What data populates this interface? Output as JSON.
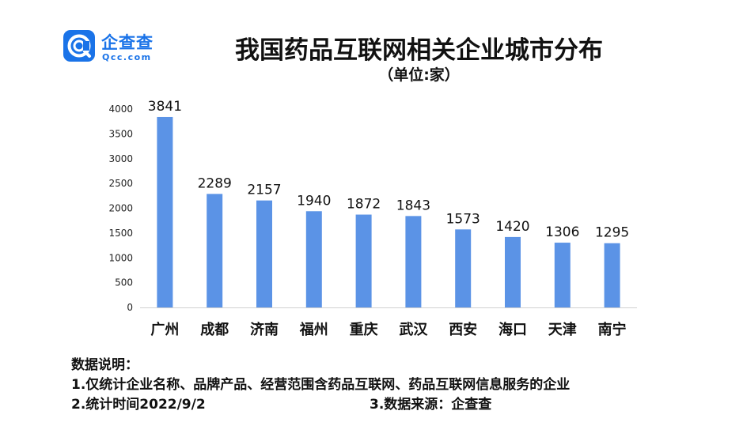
{
  "logo": {
    "name": "企查查",
    "domain": "Qcc.com",
    "color": "#1a73e8"
  },
  "chart_data": {
    "type": "bar",
    "title": "我国药品互联网相关企业城市分布",
    "subtitle": "（单位:家）",
    "categories": [
      "广州",
      "成都",
      "济南",
      "福州",
      "重庆",
      "武汉",
      "西安",
      "海口",
      "天津",
      "南宁"
    ],
    "values": [
      3841,
      2289,
      2157,
      1940,
      1872,
      1843,
      1573,
      1420,
      1306,
      1295
    ],
    "ylim": [
      0,
      4000
    ],
    "yticks": [
      "0",
      "500",
      "1000",
      "1500",
      "2000",
      "2500",
      "3000",
      "3500",
      "4000"
    ],
    "grid": false,
    "bar_color": "#5b93e6"
  },
  "notes": {
    "heading": "数据说明：",
    "item1": "1.仅统计企业名称、品牌产品、经营范围含药品互联网、药品互联网信息服务的企业",
    "item2": "2.统计时间2022/9/2",
    "item3": "3.数据来源：企查查"
  }
}
